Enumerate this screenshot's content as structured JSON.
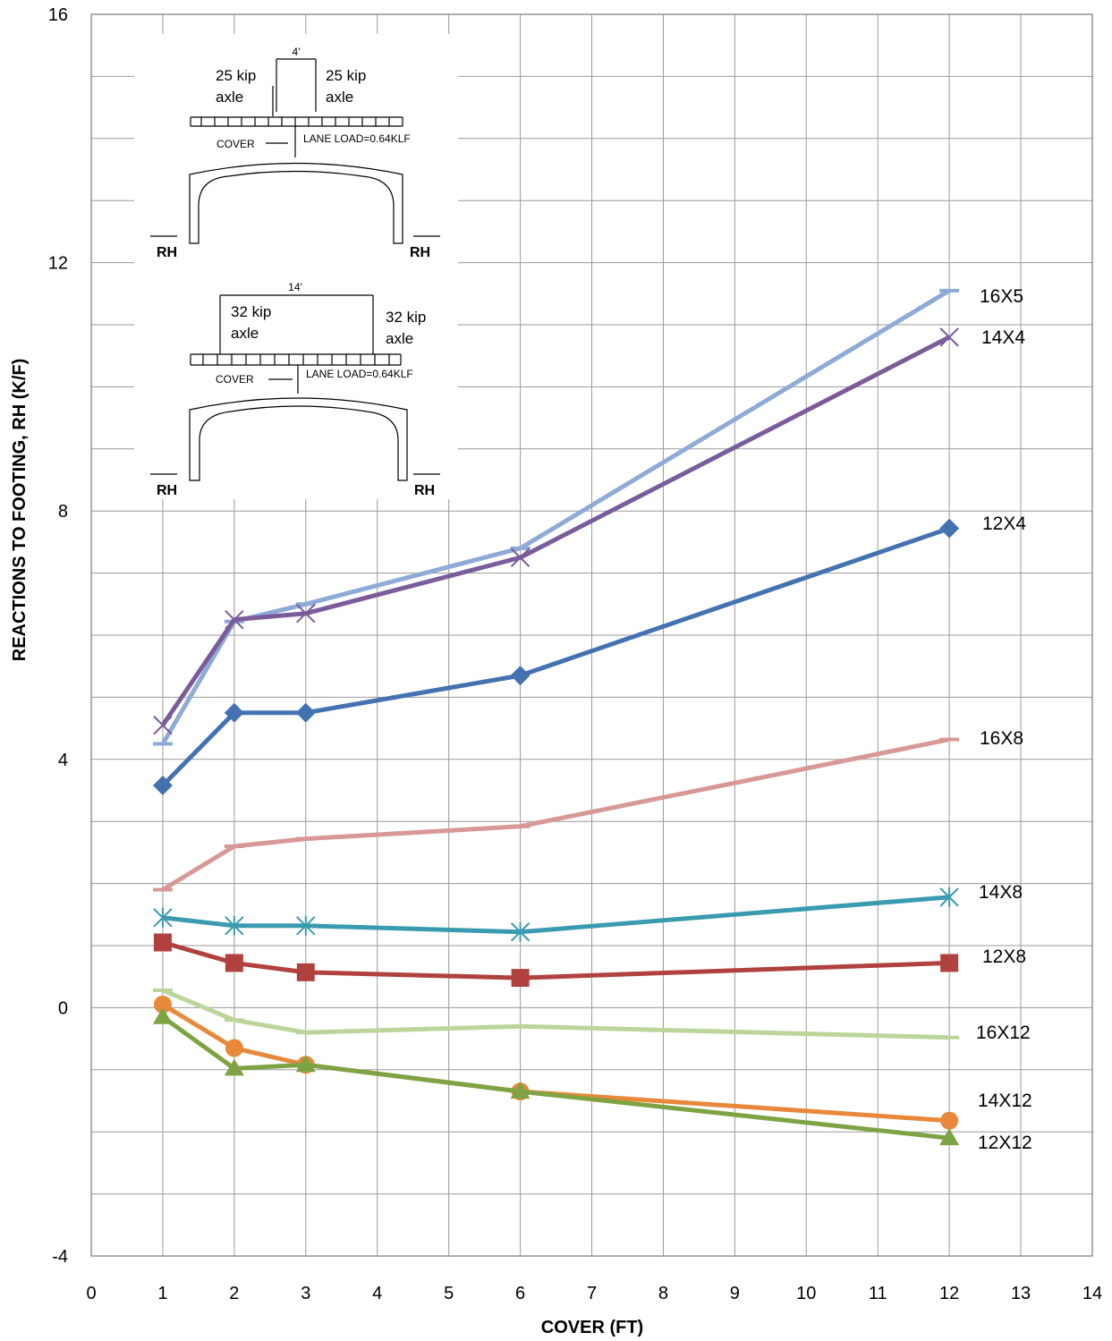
{
  "chart_data": {
    "type": "line",
    "xlabel": "COVER (FT)",
    "ylabel": "REACTIONS TO FOOTING, RH (K/F)",
    "xlim": [
      0,
      14
    ],
    "ylim": [
      -4,
      16
    ],
    "x_ticks": [
      "0",
      "1",
      "2",
      "3",
      "4",
      "5",
      "6",
      "7",
      "8",
      "9",
      "10",
      "11",
      "12",
      "13",
      "14"
    ],
    "x_tick_values": [
      0,
      1,
      2,
      3,
      4,
      5,
      6,
      7,
      8,
      9,
      10,
      11,
      12,
      13,
      14
    ],
    "y_ticks": [
      "-4",
      "0",
      "4",
      "8",
      "12",
      "16"
    ],
    "y_tick_values": [
      -4,
      0,
      4,
      8,
      12,
      16
    ],
    "grid": true,
    "x": [
      1,
      2,
      3,
      6,
      12
    ],
    "series": [
      {
        "name": "16X5",
        "values": [
          4.25,
          6.22,
          6.5,
          7.4,
          11.55
        ],
        "color": "#8eaad6",
        "marker": "dash"
      },
      {
        "name": "14X4",
        "values": [
          4.55,
          6.25,
          6.35,
          7.25,
          10.8
        ],
        "color": "#7b5c9b",
        "marker": "x"
      },
      {
        "name": "12X4",
        "values": [
          3.58,
          4.75,
          4.75,
          5.35,
          7.72
        ],
        "color": "#4472b0",
        "marker": "diamond"
      },
      {
        "name": "16X8",
        "values": [
          1.9,
          2.6,
          2.72,
          2.92,
          4.32
        ],
        "color": "#d79896",
        "marker": "dash"
      },
      {
        "name": "14X8",
        "values": [
          1.45,
          1.32,
          1.32,
          1.22,
          1.78
        ],
        "color": "#3a9bb0",
        "marker": "asterisk"
      },
      {
        "name": "12X8",
        "values": [
          1.05,
          0.72,
          0.57,
          0.48,
          0.72
        ],
        "color": "#b0413e",
        "marker": "square"
      },
      {
        "name": "16X12",
        "values": [
          0.28,
          -0.2,
          -0.4,
          -0.3,
          -0.48
        ],
        "color": "#bcd59a",
        "marker": "dash"
      },
      {
        "name": "14X12",
        "values": [
          0.05,
          -0.65,
          -0.92,
          -1.35,
          -1.82
        ],
        "color": "#e8883a",
        "marker": "circle"
      },
      {
        "name": "12X12",
        "values": [
          -0.15,
          -0.98,
          -0.92,
          -1.35,
          -2.1
        ],
        "color": "#7ea343",
        "marker": "triangle"
      }
    ]
  },
  "diagram": {
    "top": {
      "spacing": "4'",
      "axle_left_1": "25 kip",
      "axle_left_2": "axle",
      "axle_right_1": "25 kip",
      "axle_right_2": "axle",
      "cover": "COVER",
      "lane_load": "LANE LOAD=0.64KLF",
      "rh_left": "RH",
      "rh_right": "RH"
    },
    "bottom": {
      "spacing": "14'",
      "axle_left_1": "32 kip",
      "axle_left_2": "axle",
      "axle_right_1": "32 kip",
      "axle_right_2": "axle",
      "cover": "COVER",
      "lane_load": "LANE LOAD=0.64KLF",
      "rh_left": "RH",
      "rh_right": "RH"
    }
  }
}
